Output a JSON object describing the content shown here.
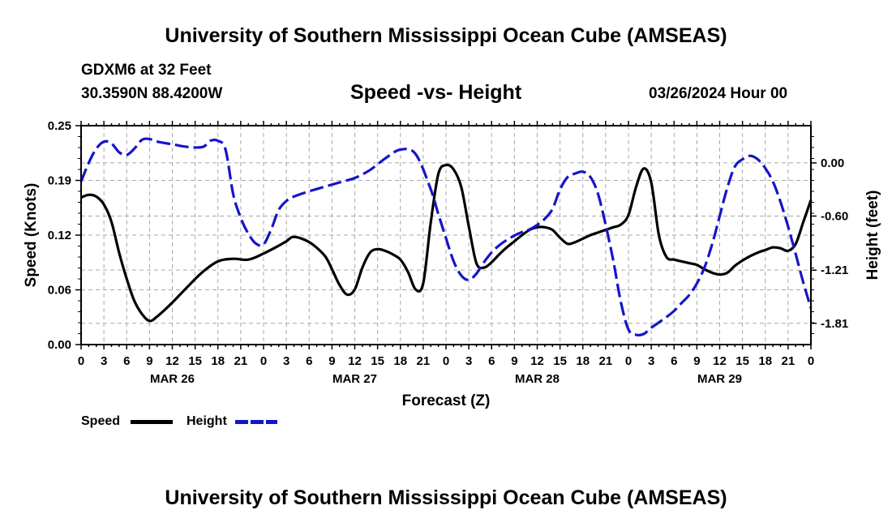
{
  "header": {
    "title": "University of Southern Mississippi Ocean Cube (AMSEAS)",
    "station": "GDXM6 at 32 Feet",
    "coords": "30.3590N  88.4200W",
    "date": "03/26/2024 Hour 00",
    "footer_title": "University of Southern Mississippi Ocean Cube (AMSEAS)"
  },
  "legend": {
    "speed_label": "Speed",
    "height_label": "Height"
  },
  "colors": {
    "speed": "#000000",
    "height": "#1515c8",
    "grid": "#a8a8a8"
  },
  "chart_data": {
    "type": "line",
    "title": "Speed -vs- Height",
    "xlabel": "Forecast (Z)",
    "ylabel_left": "Speed (Knots)",
    "ylabel_right": "Height (feet)",
    "x_unit": "hours from 03/26/2024 00Z",
    "xlim": [
      0,
      96
    ],
    "ylim_left": [
      0,
      0.25
    ],
    "ylim_right": [
      -2.05,
      0.42
    ],
    "yticks_left": [
      {
        "v": 0.0,
        "label": "0.00"
      },
      {
        "v": 0.0625,
        "label": "0.06"
      },
      {
        "v": 0.125,
        "label": "0.12"
      },
      {
        "v": 0.1875,
        "label": "0.19"
      },
      {
        "v": 0.25,
        "label": "0.25"
      }
    ],
    "yticks_right": [
      {
        "v": 0.0,
        "label": "0.00"
      },
      {
        "v": -0.6,
        "label": "-0.60"
      },
      {
        "v": -1.21,
        "label": "-1.21"
      },
      {
        "v": -1.81,
        "label": "-1.81"
      }
    ],
    "xtick_labels": [
      "0",
      "3",
      "6",
      "9",
      "12",
      "15",
      "18",
      "21",
      "0",
      "3",
      "6",
      "9",
      "12",
      "15",
      "18",
      "21",
      "0",
      "3",
      "6",
      "9",
      "12",
      "15",
      "18",
      "21",
      "0",
      "3",
      "6",
      "9",
      "12",
      "15",
      "18",
      "21",
      "0"
    ],
    "date_labels": [
      {
        "x": 12,
        "label": "MAR 26"
      },
      {
        "x": 36,
        "label": "MAR 27"
      },
      {
        "x": 60,
        "label": "MAR 28"
      },
      {
        "x": 84,
        "label": "MAR 29"
      }
    ],
    "series": [
      {
        "name": "Speed",
        "axis": "left",
        "dash": "solid",
        "x": [
          0,
          1,
          2,
          3,
          4,
          5,
          6,
          7,
          8,
          9,
          10,
          12,
          14,
          16,
          18,
          20,
          22,
          24,
          26,
          27,
          28,
          30,
          32,
          33,
          34,
          35,
          36,
          37,
          38,
          39,
          40,
          41,
          42,
          43,
          44,
          45,
          46,
          47,
          48,
          49,
          50,
          51,
          52,
          53,
          54,
          55,
          56,
          57,
          58,
          59,
          60,
          61,
          62,
          63,
          64,
          65,
          66,
          67,
          68,
          69,
          70,
          71,
          72,
          73,
          74,
          75,
          76,
          77,
          78,
          79,
          80,
          81,
          82,
          83,
          84,
          85,
          86,
          87,
          88,
          89,
          90,
          91,
          92,
          93,
          94,
          95,
          96
        ],
        "values": [
          0.168,
          0.171,
          0.169,
          0.16,
          0.14,
          0.105,
          0.075,
          0.05,
          0.035,
          0.027,
          0.032,
          0.048,
          0.066,
          0.083,
          0.095,
          0.098,
          0.097,
          0.104,
          0.113,
          0.118,
          0.123,
          0.117,
          0.102,
          0.086,
          0.068,
          0.057,
          0.063,
          0.088,
          0.105,
          0.109,
          0.107,
          0.103,
          0.097,
          0.083,
          0.063,
          0.07,
          0.14,
          0.195,
          0.205,
          0.2,
          0.18,
          0.135,
          0.093,
          0.088,
          0.094,
          0.103,
          0.111,
          0.118,
          0.125,
          0.131,
          0.134,
          0.134,
          0.131,
          0.122,
          0.115,
          0.117,
          0.121,
          0.125,
          0.128,
          0.131,
          0.134,
          0.137,
          0.148,
          0.18,
          0.201,
          0.185,
          0.125,
          0.1,
          0.097,
          0.095,
          0.093,
          0.091,
          0.086,
          0.082,
          0.08,
          0.082,
          0.09,
          0.096,
          0.101,
          0.105,
          0.108,
          0.111,
          0.11,
          0.107,
          0.115,
          0.14,
          0.165
        ]
      },
      {
        "name": "Height",
        "axis": "right",
        "dash": "dashed",
        "x": [
          0,
          1,
          2,
          3,
          4,
          5,
          6,
          7,
          8,
          9,
          10,
          12,
          14,
          16,
          17,
          18,
          19,
          20,
          21,
          22,
          23,
          24,
          25,
          26,
          27,
          28,
          30,
          32,
          34,
          36,
          38,
          40,
          42,
          44,
          46,
          47,
          48,
          49,
          50,
          51,
          52,
          53,
          54,
          55,
          56,
          57,
          58,
          59,
          60,
          61,
          62,
          63,
          64,
          65,
          66,
          67,
          68,
          69,
          70,
          71,
          72,
          73,
          74,
          75,
          76,
          77,
          78,
          79,
          80,
          81,
          82,
          83,
          84,
          85,
          86,
          87,
          88,
          89,
          90,
          91,
          92,
          93,
          94,
          95,
          96
        ],
        "values": [
          -0.21,
          0.0,
          0.16,
          0.24,
          0.22,
          0.12,
          0.09,
          0.16,
          0.26,
          0.27,
          0.24,
          0.21,
          0.18,
          0.18,
          0.25,
          0.25,
          0.15,
          -0.35,
          -0.62,
          -0.8,
          -0.91,
          -0.92,
          -0.75,
          -0.53,
          -0.43,
          -0.38,
          -0.32,
          -0.27,
          -0.22,
          -0.17,
          -0.08,
          0.05,
          0.15,
          0.1,
          -0.3,
          -0.58,
          -0.85,
          -1.11,
          -1.27,
          -1.32,
          -1.25,
          -1.12,
          -1.01,
          -0.93,
          -0.87,
          -0.82,
          -0.78,
          -0.75,
          -0.7,
          -0.63,
          -0.52,
          -0.3,
          -0.16,
          -0.12,
          -0.1,
          -0.16,
          -0.35,
          -0.7,
          -1.1,
          -1.57,
          -1.88,
          -1.94,
          -1.93,
          -1.86,
          -1.8,
          -1.74,
          -1.67,
          -1.58,
          -1.49,
          -1.36,
          -1.18,
          -0.92,
          -0.6,
          -0.28,
          -0.04,
          0.04,
          0.08,
          0.04,
          -0.06,
          -0.21,
          -0.44,
          -0.72,
          -1.03,
          -1.35,
          -1.64
        ]
      }
    ]
  }
}
